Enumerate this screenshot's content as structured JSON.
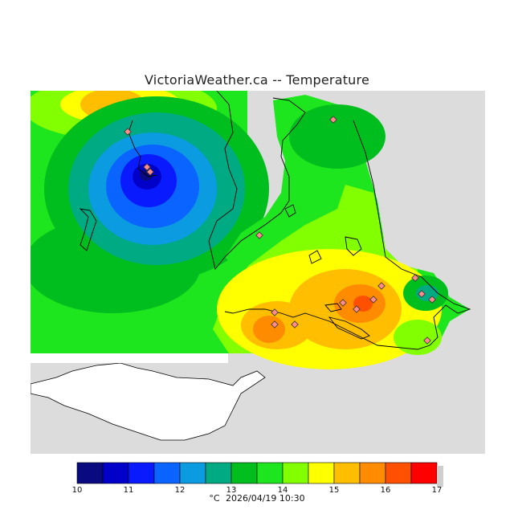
{
  "title": "VictoriaWeather.ca -- Temperature",
  "legend": {
    "ticks": [
      "10",
      "11",
      "12",
      "13",
      "14",
      "15",
      "16",
      "17"
    ],
    "bands": [
      {
        "from": 10.0,
        "to": 10.5,
        "color": "#0a0a80"
      },
      {
        "from": 10.5,
        "to": 11.0,
        "color": "#0000c8"
      },
      {
        "from": 11.0,
        "to": 11.5,
        "color": "#0a1aff"
      },
      {
        "from": 11.5,
        "to": 12.0,
        "color": "#0a64ff"
      },
      {
        "from": 12.0,
        "to": 12.5,
        "color": "#0a9be0"
      },
      {
        "from": 12.5,
        "to": 13.0,
        "color": "#00aa82"
      },
      {
        "from": 13.0,
        "to": 13.5,
        "color": "#00be1e"
      },
      {
        "from": 13.5,
        "to": 14.0,
        "color": "#1ee61e"
      },
      {
        "from": 14.0,
        "to": 14.5,
        "color": "#82ff00"
      },
      {
        "from": 14.5,
        "to": 15.0,
        "color": "#ffff00"
      },
      {
        "from": 15.0,
        "to": 15.5,
        "color": "#ffbe00"
      },
      {
        "from": 15.5,
        "to": 16.0,
        "color": "#ff8c00"
      },
      {
        "from": 16.0,
        "to": 16.5,
        "color": "#ff5000"
      },
      {
        "from": 16.5,
        "to": 17.0,
        "color": "#ff0000"
      }
    ]
  },
  "footer": {
    "unit": "°C",
    "timestamp": "2026/04/19 10:30"
  },
  "colors": {
    "no_data": "#dcdcdc",
    "land_outline": "#000000",
    "station_marker": "#ff8c8c"
  }
}
